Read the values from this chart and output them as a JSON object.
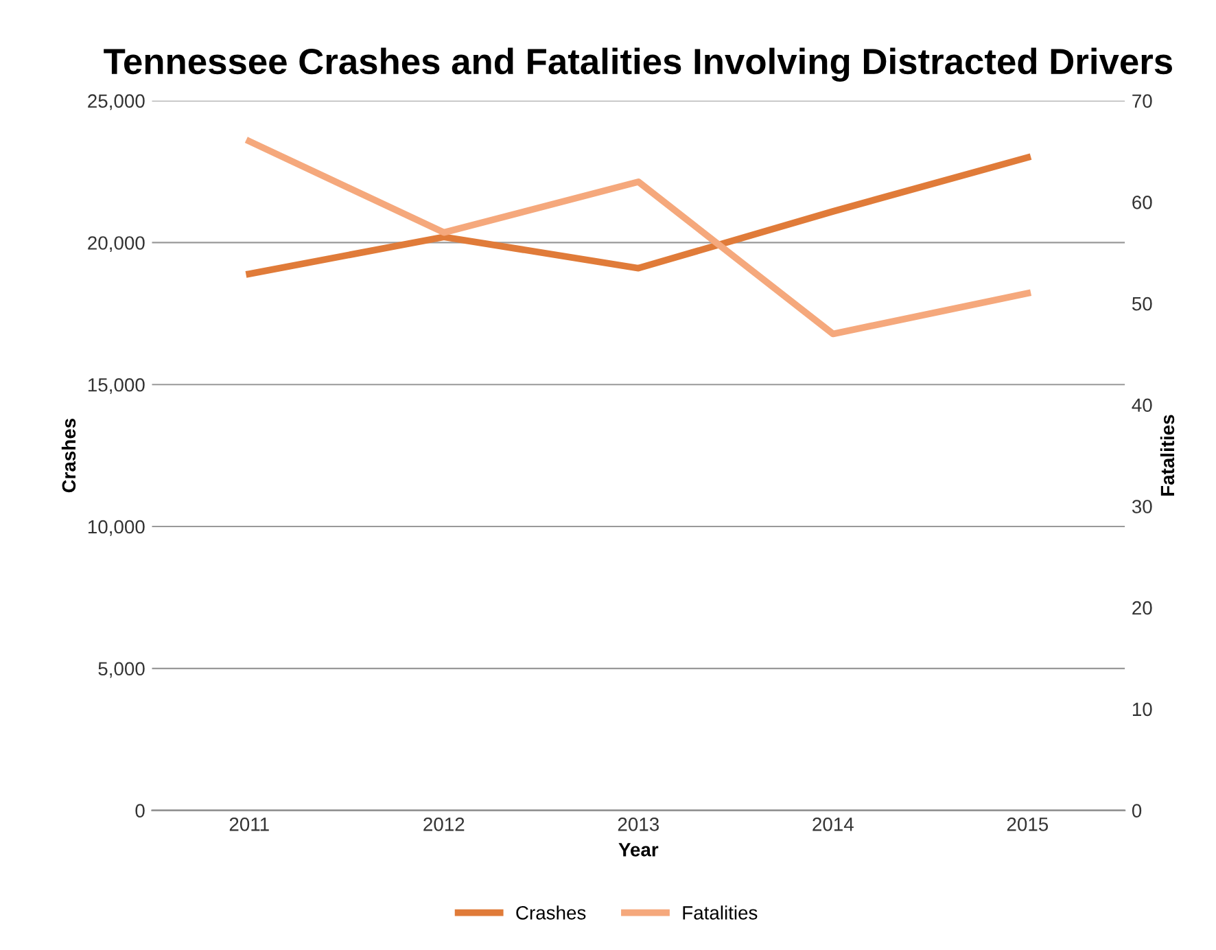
{
  "chart_data": {
    "type": "line",
    "title": "Tennessee Crashes and Fatalities Involving Distracted Drivers",
    "xlabel": "Year",
    "ylabel": "Crashes",
    "y2label": "Fatalities",
    "categories": [
      "2011",
      "2012",
      "2013",
      "2014",
      "2015"
    ],
    "series": [
      {
        "name": "Crashes",
        "color": "#e07b39",
        "values": [
          18900,
          20200,
          19100,
          21100,
          23000
        ]
      },
      {
        "name": "Fatalities",
        "color": "#f5a87c",
        "values": [
          66,
          57,
          62,
          47,
          51
        ],
        "axis": "y2"
      }
    ],
    "ylim": [
      0,
      25000
    ],
    "yticks": [
      {
        "value": 0,
        "label": "0"
      },
      {
        "value": 5000,
        "label": "5,000"
      },
      {
        "value": 10000,
        "label": "10,000"
      },
      {
        "value": 15000,
        "label": "15,000"
      },
      {
        "value": 20000,
        "label": "20,000"
      },
      {
        "value": 25000,
        "label": "25,000"
      }
    ],
    "y2lim": [
      0,
      70
    ],
    "y2ticks": [
      0,
      10,
      20,
      30,
      40,
      50,
      60,
      70
    ],
    "grid": "y",
    "legend": "bottom",
    "marker": "none",
    "line_style": "solid"
  }
}
